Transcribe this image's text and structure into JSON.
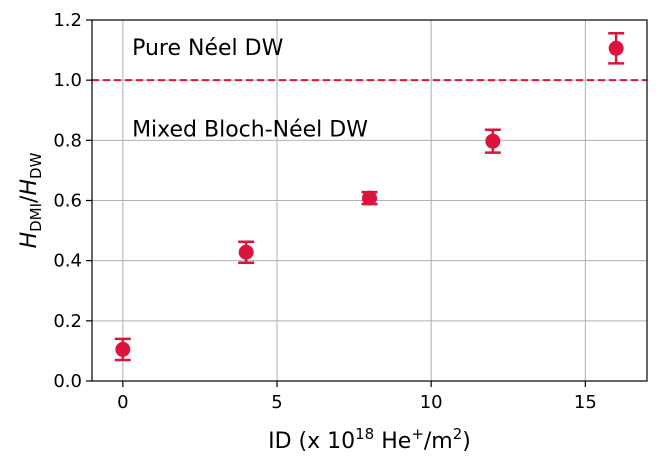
{
  "chart_data": {
    "type": "scatter",
    "title": "",
    "xlabel": {
      "prefix": "ID (x 10",
      "exp": "18",
      "mid": " He",
      "sup2": "+",
      "mid2": "/m",
      "sup3": "2",
      "suffix": ")"
    },
    "ylabel": {
      "h1": "H",
      "sub1": "DMI",
      "slash": "/",
      "h2": "H",
      "sub2": "DW"
    },
    "xlim": [
      -1.0,
      17.0
    ],
    "ylim": [
      0.0,
      1.2
    ],
    "xticks": [
      0,
      5,
      10,
      15
    ],
    "xtick_labels": [
      "0",
      "5",
      "10",
      "15"
    ],
    "yticks": [
      0.0,
      0.2,
      0.4,
      0.6,
      0.8,
      1.0,
      1.2
    ],
    "ytick_labels": [
      "0.0",
      "0.2",
      "0.4",
      "0.6",
      "0.8",
      "1.0",
      "1.2"
    ],
    "grid": true,
    "series": [
      {
        "color": "#dc143c",
        "x": [
          0,
          4,
          8,
          12,
          16
        ],
        "y": [
          0.105,
          0.428,
          0.608,
          0.797,
          1.106
        ],
        "yerr": [
          0.035,
          0.035,
          0.02,
          0.038,
          0.05
        ]
      }
    ],
    "reference_line": {
      "y": 1.0,
      "style": "dashed",
      "color": "#dc143c"
    },
    "annotations": [
      {
        "text": "Pure Néel DW",
        "x": 0.3,
        "y": 1.11
      },
      {
        "text": "Mixed Bloch-Néel DW",
        "x": 0.3,
        "y": 0.84
      }
    ]
  }
}
